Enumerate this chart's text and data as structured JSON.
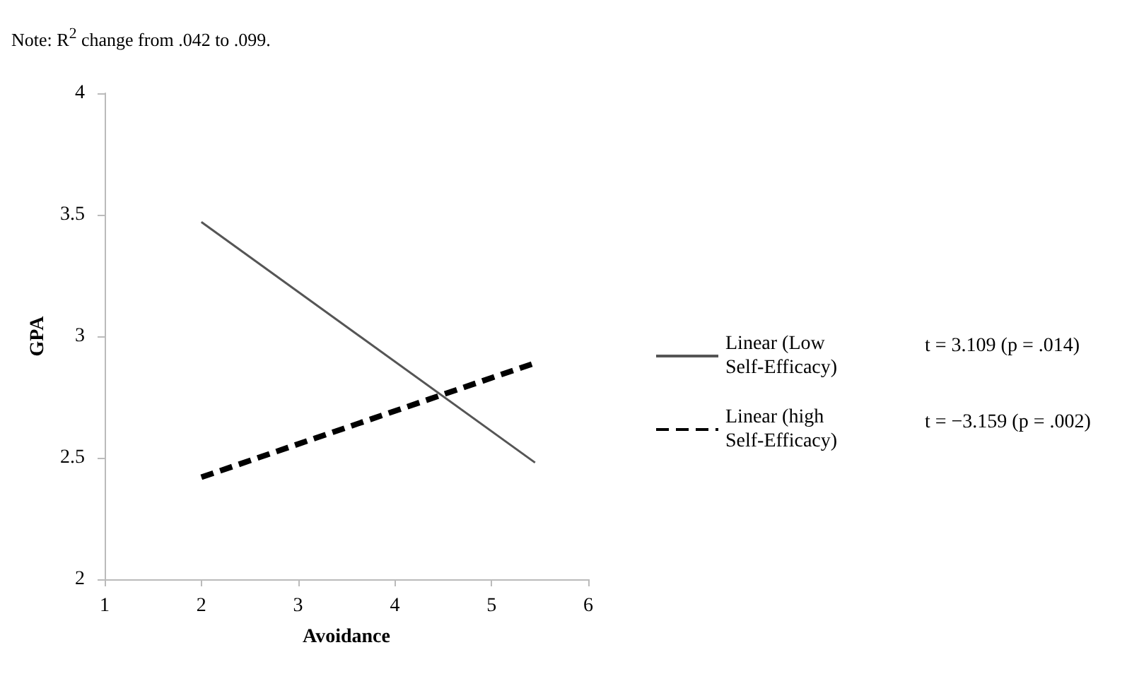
{
  "chart_data": {
    "type": "line",
    "xlabel": "Avoidance",
    "ylabel": "GPA",
    "annotations": [
      "Note: R$^{2}$ change from .042 to .099.",
      "t = 3.109 (p = .014)",
      "t = −3.159 (p = .002)"
    ],
    "x": [
      2,
      5.45
    ],
    "series": [
      {
        "name": "Linear (Low Self-Efficacy)",
        "color": "#555555",
        "line_style": "solid",
        "values": [
          3.47,
          2.48
        ]
      },
      {
        "name": "Linear (high Self-Efficacy)",
        "color": "#000000",
        "line_style": "dashed",
        "values": [
          2.42,
          2.89
        ]
      }
    ],
    "xlim": [
      1,
      6
    ],
    "xticks": [
      1,
      2,
      3,
      4,
      5,
      6
    ],
    "ylim": [
      2,
      4
    ],
    "yticks": [
      2,
      2.5,
      3,
      3.5,
      4
    ],
    "grid": false,
    "legend": "right",
    "marker": "none"
  }
}
